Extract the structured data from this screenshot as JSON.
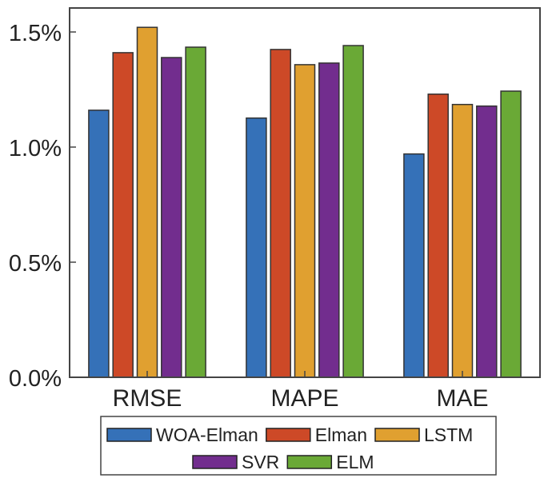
{
  "chart_data": {
    "type": "bar",
    "title": "",
    "xlabel": "",
    "ylabel": "",
    "categories": [
      "RMSE",
      "MAPE",
      "MAE"
    ],
    "series": [
      {
        "name": "WOA-Elman",
        "color": "#3571b8",
        "values": [
          1.16,
          1.126,
          0.97
        ]
      },
      {
        "name": "Elman",
        "color": "#cd4927",
        "values": [
          1.41,
          1.424,
          1.23
        ]
      },
      {
        "name": "LSTM",
        "color": "#e0a030",
        "values": [
          1.52,
          1.358,
          1.185
        ]
      },
      {
        "name": "SVR",
        "color": "#722d8e",
        "values": [
          1.389,
          1.365,
          1.178
        ]
      },
      {
        "name": "ELM",
        "color": "#6aa936",
        "values": [
          1.434,
          1.441,
          1.243
        ]
      }
    ],
    "value_unit": "%",
    "ylim": [
      0,
      1.6
    ],
    "yticks": [
      0.0,
      0.5,
      1.0,
      1.5
    ],
    "ytick_labels": [
      "0.0%",
      "0.5%",
      "1.0%",
      "1.5%"
    ],
    "grid": false,
    "legend": {
      "placement": "bottom-center",
      "rows": [
        [
          "WOA-Elman",
          "Elman",
          "LSTM"
        ],
        [
          "SVR",
          "ELM"
        ]
      ]
    }
  }
}
